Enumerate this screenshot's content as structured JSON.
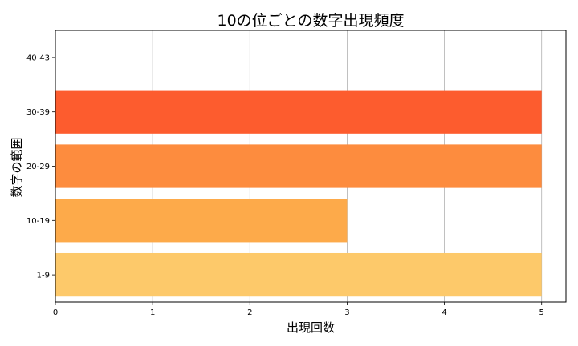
{
  "chart_data": {
    "type": "bar",
    "orientation": "horizontal",
    "title": "10の位ごとの数字出現頻度",
    "xlabel": "出現回数",
    "ylabel": "数字の範囲",
    "categories": [
      "1-9",
      "10-19",
      "20-29",
      "30-39",
      "40-43"
    ],
    "values": [
      5,
      3,
      5,
      5,
      0
    ],
    "colors": [
      "#fdc96a",
      "#fdaa4a",
      "#fd8c3e",
      "#fd5c2e",
      "#e03020"
    ],
    "xlim": [
      0,
      5.25
    ],
    "xticks": [
      0,
      1,
      2,
      3,
      4,
      5
    ],
    "grid": "x-axis vertical lines"
  }
}
